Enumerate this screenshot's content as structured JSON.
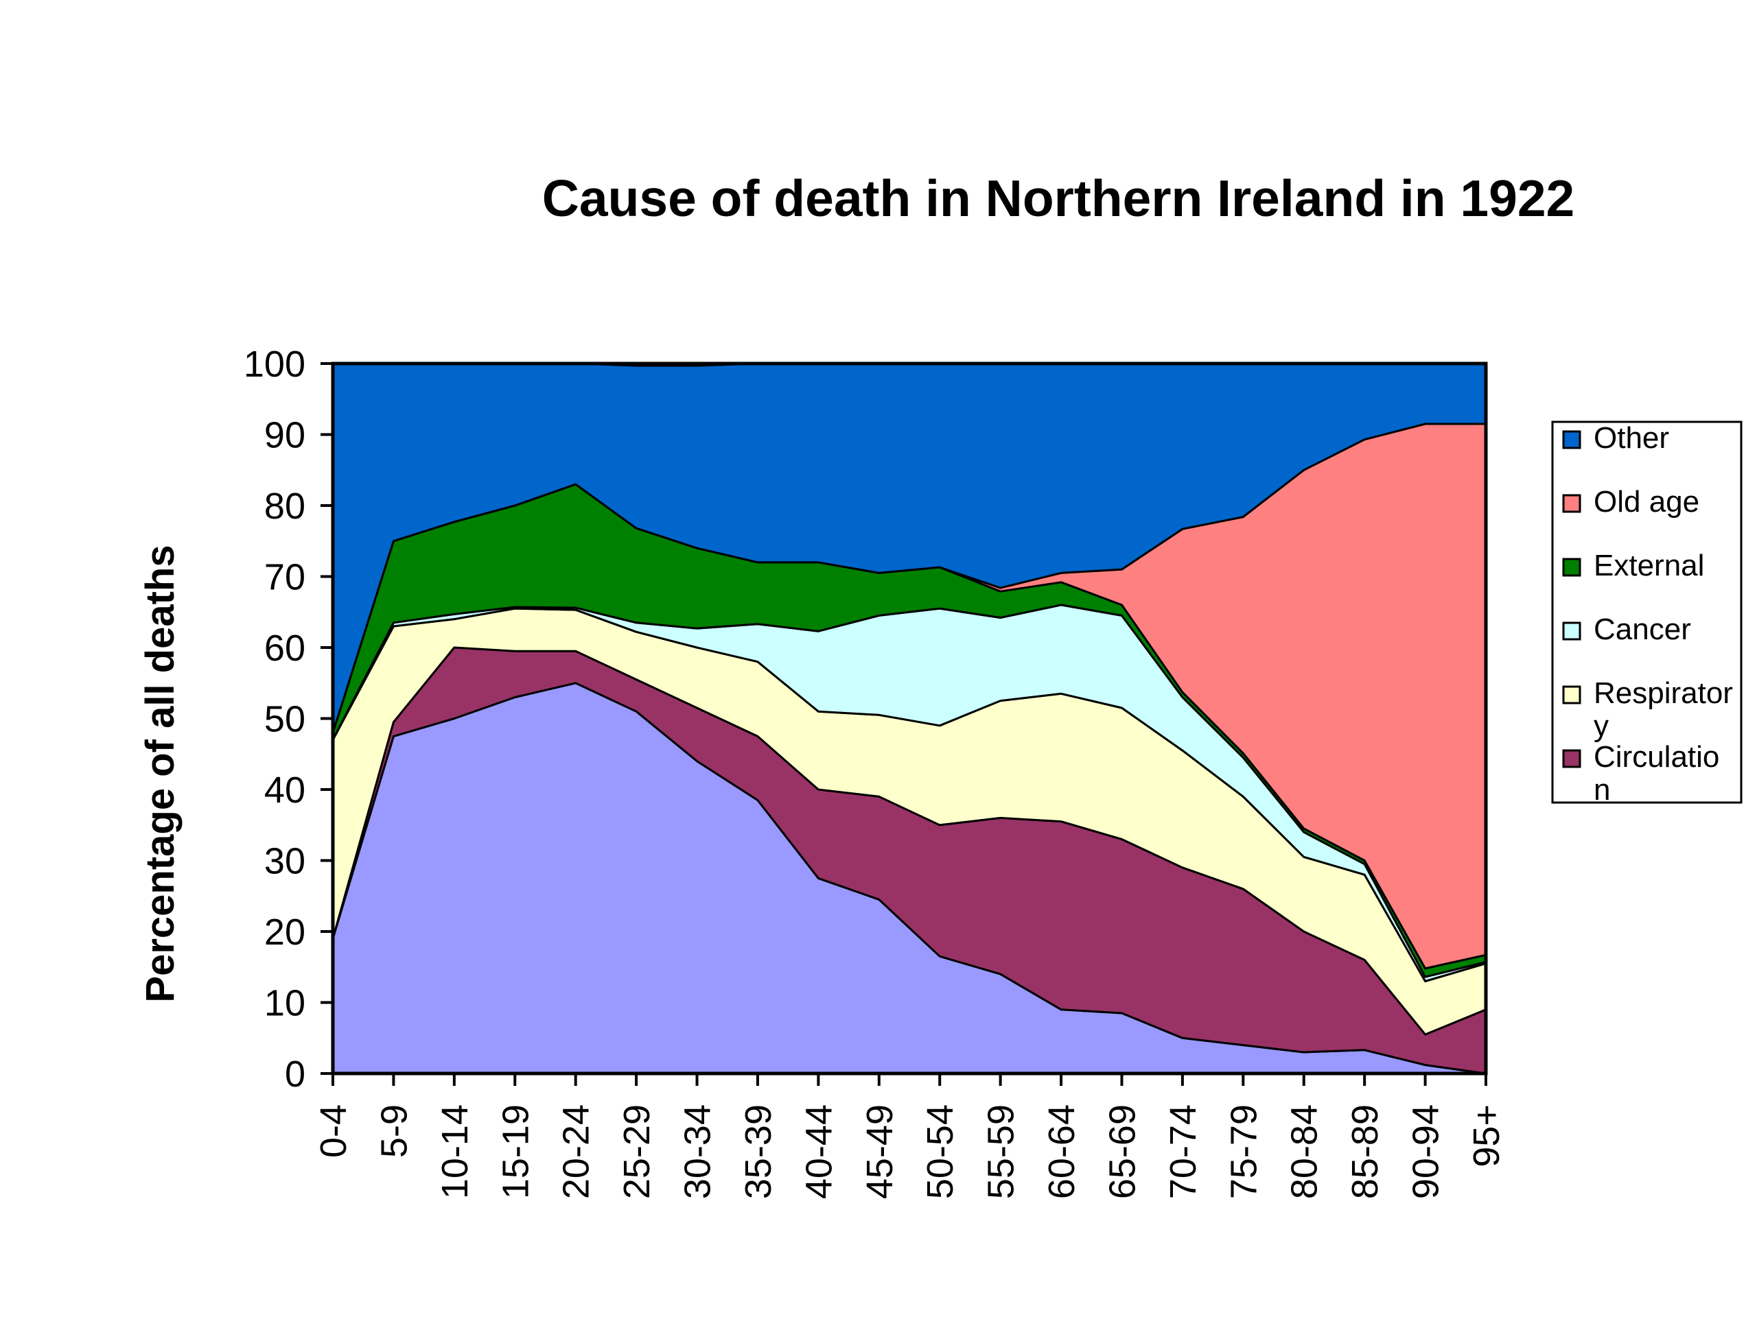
{
  "chart_data": {
    "type": "area",
    "stacked": true,
    "title": "Cause of death in Northern Ireland in 1922",
    "xlabel": "",
    "ylabel": "Percentage of all deaths",
    "ylim": [
      0,
      100
    ],
    "yticks": [
      0,
      10,
      20,
      30,
      40,
      50,
      60,
      70,
      80,
      90,
      100
    ],
    "grid": false,
    "legend_position": "right",
    "categories": [
      "0-4",
      "5-9",
      "10-14",
      "15-19",
      "20-24",
      "25-29",
      "30-34",
      "35-39",
      "40-44",
      "45-49",
      "50-54",
      "55-59",
      "60-64",
      "65-69",
      "70-74",
      "75-79",
      "80-84",
      "85-89",
      "90-94",
      "95+"
    ],
    "series": [
      {
        "name": "",
        "color": "#9999ff",
        "values": [
          19,
          47.5,
          50,
          53,
          55,
          51,
          44,
          38.5,
          27.5,
          24.5,
          16.5,
          14,
          9,
          8.5,
          5,
          4,
          3,
          3.3,
          1.2,
          0
        ]
      },
      {
        "name": "Circulatio\nn",
        "color": "#993366",
        "values": [
          0,
          2,
          10,
          6.5,
          4.5,
          4.5,
          7.5,
          9,
          12.5,
          14.5,
          18.5,
          22,
          26.5,
          24.5,
          24,
          22,
          17,
          12.7,
          4.3,
          9
        ]
      },
      {
        "name": "Respirator\ny",
        "color": "#ffffcc",
        "values": [
          28,
          13.5,
          4,
          6,
          5.8,
          6.7,
          8.5,
          10.5,
          11,
          11.5,
          14,
          16.5,
          18,
          18.5,
          16.5,
          13,
          10.5,
          12,
          7.5,
          6.5
        ]
      },
      {
        "name": "Cancer",
        "color": "#ccffff",
        "values": [
          0,
          0.5,
          0.7,
          0.2,
          0.3,
          1.3,
          2.7,
          5.3,
          11.3,
          14,
          16.5,
          11.7,
          12.5,
          13,
          7.5,
          5.5,
          3.5,
          1.5,
          0.6,
          0.2
        ]
      },
      {
        "name": "External",
        "color": "#008000",
        "values": [
          1,
          11.5,
          13,
          14.3,
          17.4,
          13.3,
          11.3,
          8.7,
          9.7,
          6,
          5.8,
          3.7,
          3.2,
          1.5,
          0.7,
          0.6,
          0.5,
          0.5,
          1.2,
          1
        ]
      },
      {
        "name": "Old age",
        "color": "#ff8080",
        "values": [
          0,
          0,
          0,
          0,
          0,
          0,
          0,
          0,
          0,
          0,
          0,
          0.5,
          1.3,
          5,
          23,
          33.3,
          50.5,
          59.3,
          76.7,
          74.8
        ]
      },
      {
        "name": "Other",
        "color": "#0066cc",
        "values": [
          52,
          25,
          22.3,
          20,
          17,
          22.9,
          25.7,
          28,
          28,
          29.5,
          28.7,
          31.6,
          29.5,
          29,
          23.3,
          21.6,
          15,
          10.7,
          8.5,
          8.5
        ]
      }
    ],
    "legend_order": [
      "Other",
      "Old age",
      "External",
      "Cancer",
      "Respirator\ny",
      "Circulatio\nn"
    ]
  }
}
